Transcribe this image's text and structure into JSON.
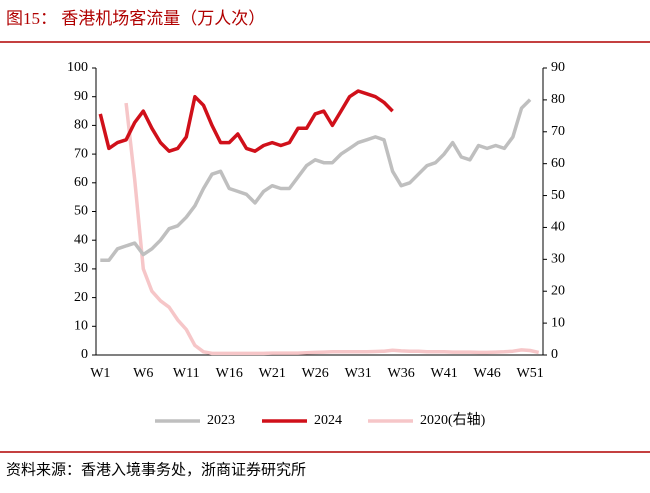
{
  "chart_data": {
    "type": "line",
    "title": "图15：  香港机场客流量（万人次）",
    "source": "资料来源：香港入境事务处，浙商证券研究所",
    "categories": [
      "W1",
      null,
      null,
      null,
      null,
      "W6",
      null,
      null,
      null,
      null,
      "W11",
      null,
      null,
      null,
      null,
      "W16",
      null,
      null,
      null,
      null,
      "W21",
      null,
      null,
      null,
      null,
      "W26",
      null,
      null,
      null,
      null,
      "W31",
      null,
      null,
      null,
      null,
      "W36",
      null,
      null,
      null,
      null,
      "W41",
      null,
      null,
      null,
      null,
      "W46",
      null,
      null,
      null,
      null,
      "W51",
      null
    ],
    "series": [
      {
        "name": "2023",
        "color": "#bfbfbf",
        "values": [
          33,
          33,
          37,
          38,
          39,
          35,
          37,
          40,
          44,
          45,
          48,
          52,
          58,
          63,
          64,
          58,
          57,
          56,
          53,
          57,
          59,
          58,
          58,
          62,
          66,
          68,
          67,
          67,
          70,
          72,
          74,
          75,
          76,
          75,
          64,
          59,
          60,
          63,
          66,
          67,
          70,
          74,
          69,
          68,
          73,
          72,
          73,
          72,
          76,
          86,
          89,
          null
        ]
      },
      {
        "name": "2024",
        "color": "#d0101a",
        "values": [
          84,
          72,
          74,
          75,
          81,
          85,
          79,
          74,
          71,
          72,
          76,
          90,
          87,
          80,
          74,
          74,
          77,
          72,
          71,
          73,
          74,
          73,
          74,
          79,
          79,
          84,
          85,
          80,
          85,
          90,
          92,
          91,
          90,
          88,
          85,
          null,
          null,
          null,
          null,
          null,
          null,
          null,
          null,
          null,
          null,
          null,
          null,
          null,
          null,
          null,
          null,
          null
        ]
      },
      {
        "name": "2020(右轴)",
        "color": "#f6c6c8",
        "axis": "y2",
        "values": [
          null,
          null,
          null,
          79,
          55,
          27,
          20,
          17,
          15,
          11,
          8,
          3,
          1,
          0.5,
          0.5,
          0.5,
          0.5,
          0.5,
          0.5,
          0.5,
          0.6,
          0.6,
          0.6,
          0.6,
          0.7,
          0.8,
          0.9,
          1,
          1,
          1,
          1,
          1,
          1.1,
          1.2,
          1.5,
          1.3,
          1.2,
          1.2,
          1,
          1,
          1,
          0.9,
          0.9,
          0.9,
          0.8,
          0.8,
          0.9,
          1,
          1.2,
          1.6,
          1.4,
          0.8
        ]
      }
    ],
    "ylim": [
      0,
      100
    ],
    "yticks": [
      0,
      10,
      20,
      30,
      40,
      50,
      60,
      70,
      80,
      90,
      100
    ],
    "y2lim": [
      0,
      90
    ],
    "y2ticks": [
      0,
      10,
      20,
      30,
      40,
      50,
      60,
      70,
      80,
      90
    ],
    "grid": false
  }
}
